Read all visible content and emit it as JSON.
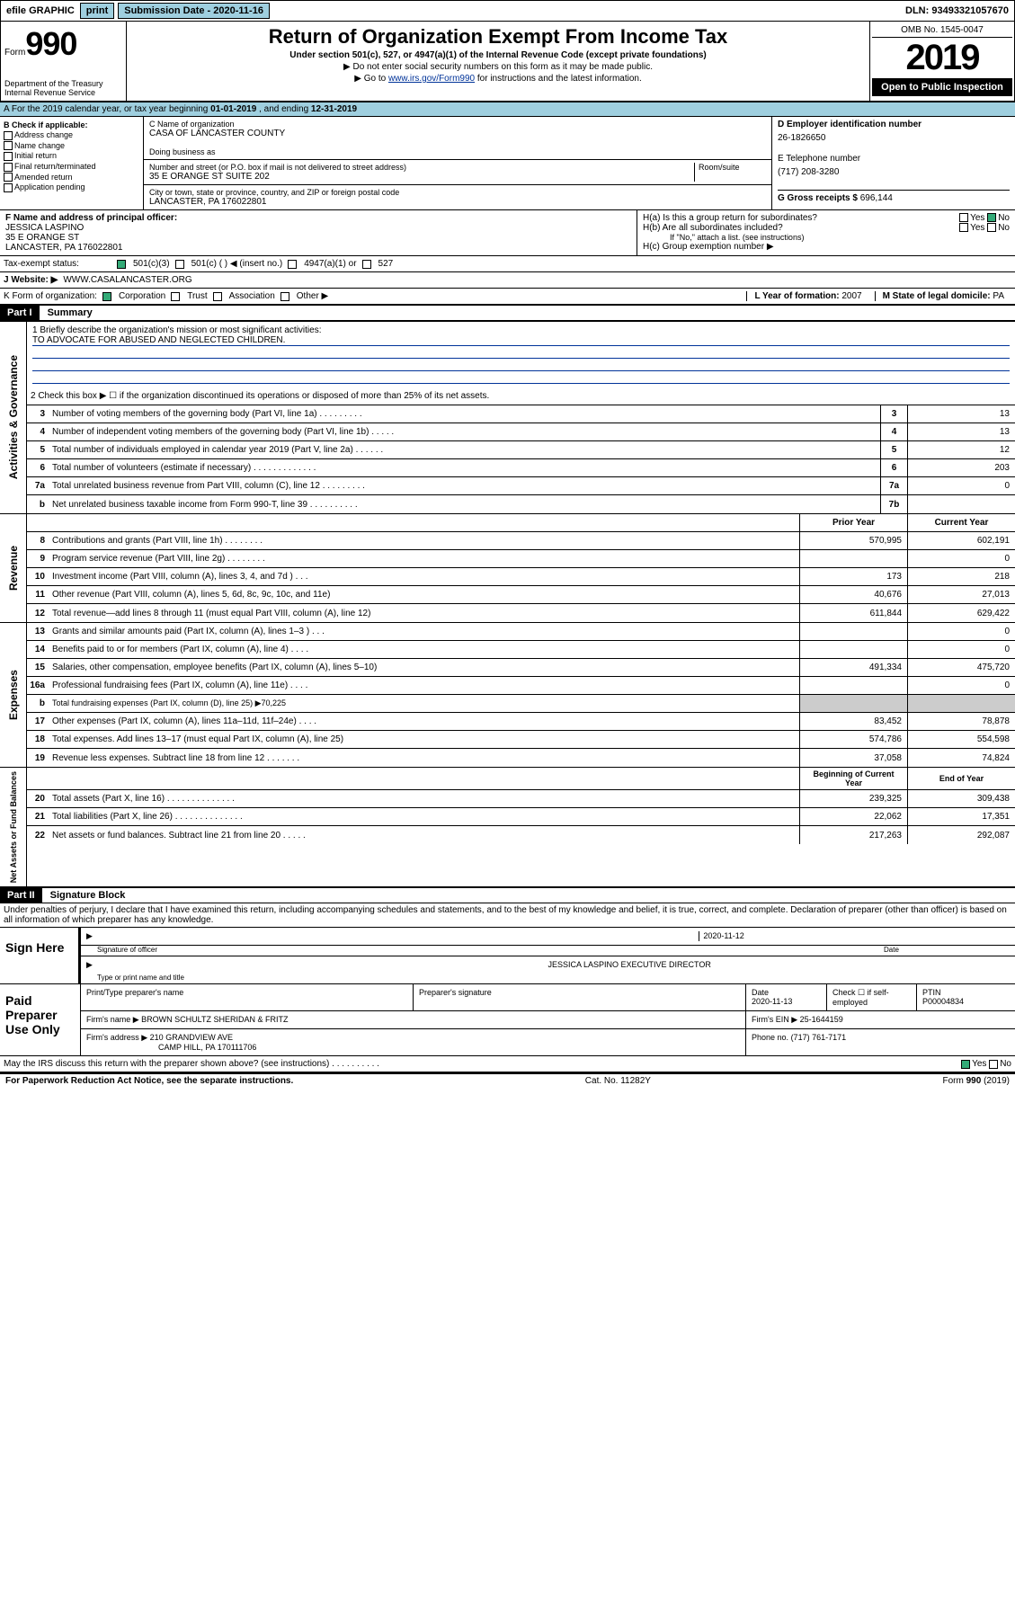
{
  "topbar": {
    "efile_label": "efile GRAPHIC",
    "print_btn": "print",
    "submission_label": "Submission Date -",
    "submission_date": "2020-11-16",
    "dln_label": "DLN:",
    "dln": "93493321057670"
  },
  "header": {
    "form_prefix": "Form",
    "form_number": "990",
    "dept1": "Department of the Treasury",
    "dept2": "Internal Revenue Service",
    "title": "Return of Organization Exempt From Income Tax",
    "subtitle1": "Under section 501(c), 527, or 4947(a)(1) of the Internal Revenue Code (except private foundations)",
    "subtitle2": "▶ Do not enter social security numbers on this form as it may be made public.",
    "subtitle3_pre": "▶ Go to ",
    "subtitle3_link": "www.irs.gov/Form990",
    "subtitle3_post": " for instructions and the latest information.",
    "omb": "OMB No. 1545-0047",
    "year": "2019",
    "open_public": "Open to Public Inspection"
  },
  "period": {
    "text_pre": "A For the 2019 calendar year, or tax year beginning ",
    "begin": "01-01-2019",
    "text_mid": " , and ending ",
    "end": "12-31-2019"
  },
  "boxB": {
    "label": "B Check if applicable:",
    "items": [
      "Address change",
      "Name change",
      "Initial return",
      "Final return/terminated",
      "Amended return",
      "Application pending"
    ]
  },
  "boxC": {
    "name_label": "C Name of organization",
    "name": "CASA OF LANCASTER COUNTY",
    "dba_label": "Doing business as",
    "addr_label": "Number and street (or P.O. box if mail is not delivered to street address)",
    "addr": "35 E ORANGE ST SUITE 202",
    "room_label": "Room/suite",
    "city_label": "City or town, state or province, country, and ZIP or foreign postal code",
    "city": "LANCASTER, PA  176022801"
  },
  "boxD": {
    "label": "D Employer identification number",
    "ein": "26-1826650"
  },
  "boxE": {
    "label": "E Telephone number",
    "phone": "(717) 208-3280"
  },
  "boxG": {
    "label": "G Gross receipts $",
    "amount": "696,144"
  },
  "boxF": {
    "label": "F Name and address of principal officer:",
    "name": "JESSICA LASPINO",
    "addr1": "35 E ORANGE ST",
    "addr2": "LANCASTER, PA  176022801"
  },
  "boxH": {
    "a_label": "H(a)  Is this a group return for subordinates?",
    "a_yes": "Yes",
    "a_no": "No",
    "b_label": "H(b)  Are all subordinates included?",
    "b_note": "If \"No,\" attach a list. (see instructions)",
    "c_label": "H(c)  Group exemption number ▶"
  },
  "taxexempt": {
    "label": "Tax-exempt status:",
    "opt1": "501(c)(3)",
    "opt2": "501(c) (  ) ◀ (insert no.)",
    "opt3": "4947(a)(1) or",
    "opt4": "527"
  },
  "website": {
    "label": "J    Website: ▶",
    "url": "WWW.CASALANCASTER.ORG"
  },
  "boxK": {
    "label": "K Form of organization:",
    "corp": "Corporation",
    "trust": "Trust",
    "assoc": "Association",
    "other": "Other ▶"
  },
  "boxL": {
    "label": "L Year of formation:",
    "year": "2007"
  },
  "boxM": {
    "label": "M State of legal domicile:",
    "state": "PA"
  },
  "part1": {
    "header": "Part I",
    "title": "Summary"
  },
  "governance": {
    "line1_label": "1  Briefly describe the organization's mission or most significant activities:",
    "line1_text": "TO ADVOCATE FOR ABUSED AND NEGLECTED CHILDREN.",
    "line2": "2   Check this box ▶ ☐  if the organization discontinued its operations or disposed of more than 25% of its net assets.",
    "rows": [
      {
        "n": "3",
        "d": "Number of voting members of the governing body (Part VI, line 1a)   .    .    .    .    .    .    .    .    .",
        "b": "3",
        "v": "13"
      },
      {
        "n": "4",
        "d": "Number of independent voting members of the governing body (Part VI, line 1b)  .    .    .    .    .",
        "b": "4",
        "v": "13"
      },
      {
        "n": "5",
        "d": "Total number of individuals employed in calendar year 2019 (Part V, line 2a)   .    .    .    .    .    .",
        "b": "5",
        "v": "12"
      },
      {
        "n": "6",
        "d": "Total number of volunteers (estimate if necessary)   .    .    .    .    .    .    .    .    .    .    .    .    .",
        "b": "6",
        "v": "203"
      },
      {
        "n": "7a",
        "d": "Total unrelated business revenue from Part VIII, column (C), line 12   .    .    .    .    .    .    .    .    .",
        "b": "7a",
        "v": "0"
      },
      {
        "n": "b",
        "d": "Net unrelated business taxable income from Form 990-T, line 39   .    .    .    .    .    .    .    .    .    .",
        "b": "7b",
        "v": ""
      }
    ]
  },
  "revenue": {
    "header_prior": "Prior Year",
    "header_current": "Current Year",
    "rows": [
      {
        "n": "8",
        "d": "Contributions and grants (Part VIII, line 1h)   .    .    .    .    .    .    .    .",
        "p": "570,995",
        "c": "602,191"
      },
      {
        "n": "9",
        "d": "Program service revenue (Part VIII, line 2g)   .    .    .    .    .    .    .    .",
        "p": "",
        "c": "0"
      },
      {
        "n": "10",
        "d": "Investment income (Part VIII, column (A), lines 3, 4, and 7d )   .    .    .",
        "p": "173",
        "c": "218"
      },
      {
        "n": "11",
        "d": "Other revenue (Part VIII, column (A), lines 5, 6d, 8c, 9c, 10c, and 11e)",
        "p": "40,676",
        "c": "27,013"
      },
      {
        "n": "12",
        "d": "Total revenue—add lines 8 through 11 (must equal Part VIII, column (A), line 12)",
        "p": "611,844",
        "c": "629,422"
      }
    ]
  },
  "expenses": {
    "rows": [
      {
        "n": "13",
        "d": "Grants and similar amounts paid (Part IX, column (A), lines 1–3 )  .    .    .",
        "p": "",
        "c": "0"
      },
      {
        "n": "14",
        "d": "Benefits paid to or for members (Part IX, column (A), line 4)  .    .    .    .",
        "p": "",
        "c": "0"
      },
      {
        "n": "15",
        "d": "Salaries, other compensation, employee benefits (Part IX, column (A), lines 5–10)",
        "p": "491,334",
        "c": "475,720"
      },
      {
        "n": "16a",
        "d": "Professional fundraising fees (Part IX, column (A), line 11e)   .    .    .    .",
        "p": "",
        "c": "0"
      },
      {
        "n": "b",
        "d": "Total fundraising expenses (Part IX, column (D), line 25) ▶70,225",
        "p": null,
        "c": null
      },
      {
        "n": "17",
        "d": "Other expenses (Part IX, column (A), lines 11a–11d, 11f–24e)  .    .    .    .",
        "p": "83,452",
        "c": "78,878"
      },
      {
        "n": "18",
        "d": "Total expenses. Add lines 13–17 (must equal Part IX, column (A), line 25)",
        "p": "574,786",
        "c": "554,598"
      },
      {
        "n": "19",
        "d": "Revenue less expenses. Subtract line 18 from line 12  .    .    .    .    .    .    .",
        "p": "37,058",
        "c": "74,824"
      }
    ]
  },
  "netassets": {
    "header_begin": "Beginning of Current Year",
    "header_end": "End of Year",
    "rows": [
      {
        "n": "20",
        "d": "Total assets (Part X, line 16)   .    .    .    .    .    .    .    .    .    .    .    .    .    .",
        "p": "239,325",
        "c": "309,438"
      },
      {
        "n": "21",
        "d": "Total liabilities (Part X, line 26)   .    .    .    .    .    .    .    .    .    .    .    .    .    .",
        "p": "22,062",
        "c": "17,351"
      },
      {
        "n": "22",
        "d": "Net assets or fund balances. Subtract line 21 from line 20  .    .    .    .    .",
        "p": "217,263",
        "c": "292,087"
      }
    ]
  },
  "part2": {
    "header": "Part II",
    "title": "Signature Block"
  },
  "perjury": "Under penalties of perjury, I declare that I have examined this return, including accompanying schedules and statements, and to the best of my knowledge and belief, it is true, correct, and complete. Declaration of preparer (other than officer) is based on all information of which preparer has any knowledge.",
  "sign": {
    "label": "Sign Here",
    "sig_label": "Signature of officer",
    "date": "2020-11-12",
    "date_label": "Date",
    "name": "JESSICA LASPINO  EXECUTIVE DIRECTOR",
    "name_label": "Type or print name and title"
  },
  "paid": {
    "label": "Paid Preparer Use Only",
    "h1": "Print/Type preparer's name",
    "h2": "Preparer's signature",
    "h3": "Date",
    "h4": "Check ☐ if self-employed",
    "h5": "PTIN",
    "date": "2020-11-13",
    "ptin": "P00004834",
    "firm_label": "Firm's name    ▶",
    "firm": "BROWN SCHULTZ SHERIDAN & FRITZ",
    "ein_label": "Firm's EIN ▶",
    "ein": "25-1644159",
    "addr_label": "Firm's address ▶",
    "addr1": "210 GRANDVIEW AVE",
    "addr2": "CAMP HILL, PA  170111706",
    "phone_label": "Phone no.",
    "phone": "(717) 761-7171"
  },
  "discuss": {
    "q": "May the IRS discuss this return with the preparer shown above? (see instructions)   .    .    .    .    .    .    .    .    .    .",
    "yes": "Yes",
    "no": "No"
  },
  "footer": {
    "left": "For Paperwork Reduction Act Notice, see the separate instructions.",
    "mid": "Cat. No. 11282Y",
    "right": "Form 990 (2019)"
  },
  "side_labels": {
    "gov": "Activities & Governance",
    "rev": "Revenue",
    "exp": "Expenses",
    "net": "Net Assets or Fund Balances"
  }
}
